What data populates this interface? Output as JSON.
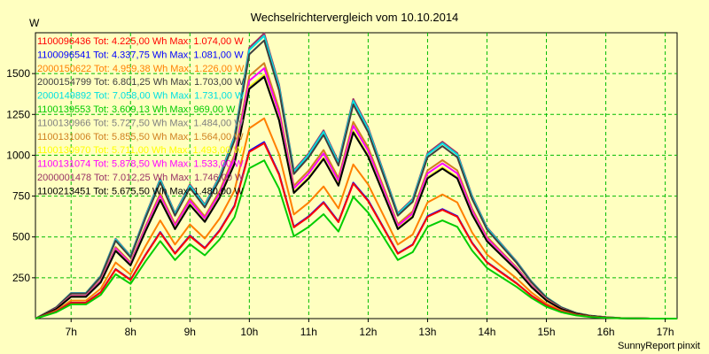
{
  "chart_data": {
    "type": "line",
    "title": "Wechselrichtervergleich vom 10.10.2014",
    "ylabel": "W",
    "xlabel": "",
    "footer": "SunnyReport pinxit",
    "x_range": [
      6.4,
      17.2
    ],
    "ylim": [
      0,
      1750
    ],
    "y_ticks": [
      250,
      500,
      750,
      1000,
      1250,
      1500
    ],
    "y_tick_labels": [
      "250",
      "500",
      "750",
      "1000",
      "1250",
      "1500"
    ],
    "x_ticks": [
      7,
      8,
      9,
      10,
      11,
      12,
      13,
      14,
      15,
      16,
      17
    ],
    "x_tick_labels": [
      "7h",
      "8h",
      "9h",
      "10h",
      "11h",
      "12h",
      "13h",
      "14h",
      "15h",
      "16h",
      "17h"
    ],
    "grid": true,
    "legend_position": "top-left",
    "times": [
      6.4,
      6.75,
      7.0,
      7.25,
      7.5,
      7.75,
      8.0,
      8.25,
      8.5,
      8.75,
      9.0,
      9.25,
      9.5,
      9.75,
      10.0,
      10.25,
      10.5,
      10.75,
      11.0,
      11.25,
      11.5,
      11.75,
      12.0,
      12.25,
      12.5,
      12.75,
      13.0,
      13.25,
      13.5,
      13.75,
      14.0,
      14.25,
      14.5,
      14.75,
      15.0,
      15.25,
      15.5,
      15.75,
      16.0,
      16.25,
      16.5,
      16.75,
      17.0,
      17.2
    ],
    "base_profile": [
      0,
      0.04,
      0.09,
      0.09,
      0.15,
      0.28,
      0.22,
      0.36,
      0.49,
      0.37,
      0.47,
      0.4,
      0.5,
      0.64,
      0.95,
      1.0,
      0.82,
      0.52,
      0.58,
      0.66,
      0.55,
      0.77,
      0.67,
      0.52,
      0.37,
      0.42,
      0.58,
      0.62,
      0.58,
      0.43,
      0.32,
      0.26,
      0.2,
      0.13,
      0.075,
      0.04,
      0.02,
      0.01,
      0.005,
      0.002,
      0.001,
      0,
      0,
      0
    ],
    "series": [
      {
        "name": "1100096436",
        "label": "1100096436 Tot: 4.225,00 Wh Max: 1.074,00 W",
        "max": 1074,
        "color": "#ff0000"
      },
      {
        "name": "1100096541",
        "label": "1100096541 Tot: 4.337,75 Wh Max: 1.081,00 W",
        "max": 1081,
        "color": "#0000ff"
      },
      {
        "name": "2000150622",
        "label": "2000150622 Tot: 4.959,38 Wh Max: 1.226,00 W",
        "max": 1226,
        "color": "#ff8000"
      },
      {
        "name": "2000154799",
        "label": "2000154799 Tot: 6.801,25 Wh Max: 1.703,00 W",
        "max": 1703,
        "color": "#404040"
      },
      {
        "name": "2000149892",
        "label": "2000149892 Tot: 7.058,00 Wh Max: 1.731,00 W",
        "max": 1731,
        "color": "#00e0e0"
      },
      {
        "name": "1100139553",
        "label": "1100139553 Tot: 3.609,13 Wh Max: 969,00 W",
        "max": 969,
        "color": "#00cc00"
      },
      {
        "name": "1100130966",
        "label": "1100130966 Tot: 5.727,50 Wh Max: 1.484,00 W",
        "max": 1484,
        "color": "#808080"
      },
      {
        "name": "1100131006",
        "label": "1100131006 Tot: 5.855,50 Wh Max: 1.564,00 W",
        "max": 1564,
        "color": "#d08020"
      },
      {
        "name": "1100130970",
        "label": "1100130970 Tot: 5.711,00 Wh Max: 1.493,00 W",
        "max": 1493,
        "color": "#ffff00"
      },
      {
        "name": "1100131074",
        "label": "1100131074 Tot: 5.878,50 Wh Max: 1.533,00 W",
        "max": 1533,
        "color": "#ff00ff"
      },
      {
        "name": "2000001478",
        "label": "2000001478 Tot: 7.012,25 Wh Max: 1.746,00 W",
        "max": 1746,
        "color": "#993366"
      },
      {
        "name": "1100213451",
        "label": "1100213451 Tot: 5.675,50 Wh Max: 1.480,00 W",
        "max": 1480,
        "color": "#000000"
      }
    ]
  }
}
